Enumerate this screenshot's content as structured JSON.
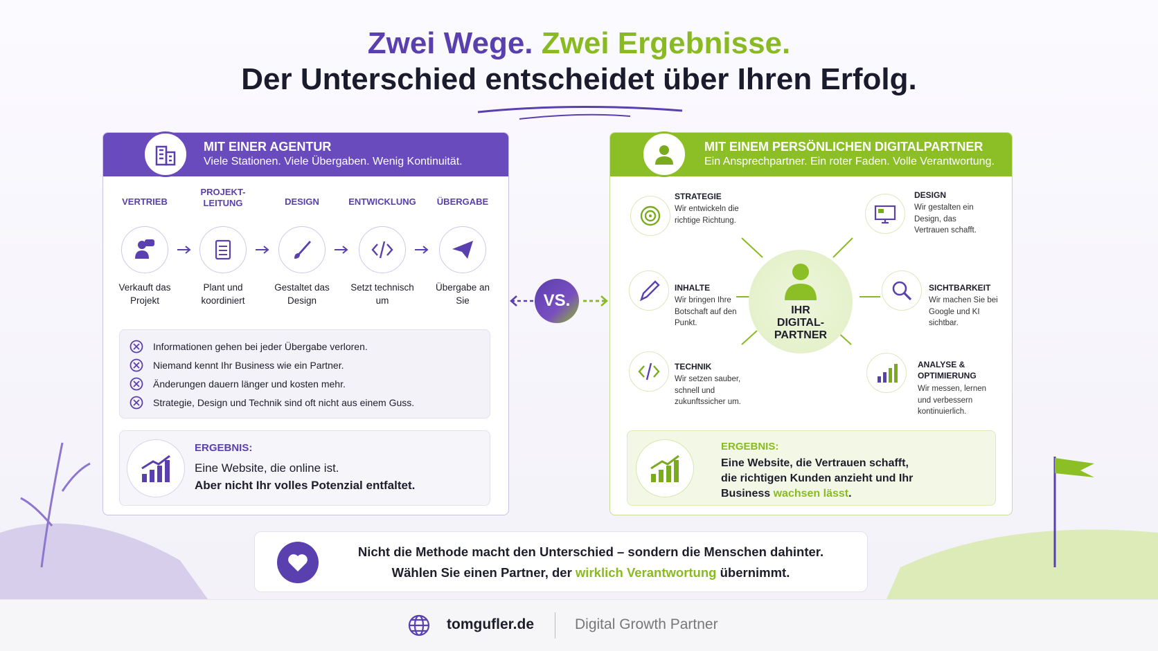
{
  "header": {
    "title_part1": "Zwei Wege.",
    "title_part2": "Zwei Ergebnisse.",
    "subtitle": "Der Unterschied entscheidet über Ihren Erfolg."
  },
  "agency": {
    "title": "MIT EINER AGENTUR",
    "subtitle": "Viele Stationen. Viele Übergaben. Wenig Kontinuität.",
    "steps": [
      {
        "label": "VERTRIEB",
        "desc": "Verkauft das Projekt"
      },
      {
        "label": "PROJEKT-LEITUNG",
        "desc": "Plant und koordiniert"
      },
      {
        "label": "DESIGN",
        "desc": "Gestaltet das Design"
      },
      {
        "label": "ENTWICKLUNG",
        "desc": "Setzt technisch um"
      },
      {
        "label": "ÜBERGABE",
        "desc": "Übergabe an Sie"
      }
    ],
    "issues": [
      "Informationen gehen bei jeder Übergabe verloren.",
      "Niemand kennt Ihr Business wie ein Partner.",
      "Änderungen dauern länger und kosten mehr.",
      "Strategie, Design und Technik sind oft nicht aus einem Guss."
    ],
    "result": {
      "label": "ERGEBNIS:",
      "line1": "Eine Website, die online ist.",
      "line2": "Aber nicht Ihr volles Potenzial entfaltet."
    }
  },
  "vs": "VS.",
  "partner": {
    "title": "MIT EINEM PERSÖNLICHEN DIGITALPARTNER",
    "subtitle": "Ein Ansprechpartner. Ein roter Faden. Volle Verantwortung.",
    "center": "IHR DIGITAL-PARTNER",
    "services": [
      {
        "title": "STRATEGIE",
        "desc": "Wir entwickeln die richtige Richtung."
      },
      {
        "title": "DESIGN",
        "desc": "Wir gestalten ein Design, das Vertrauen schafft."
      },
      {
        "title": "INHALTE",
        "desc": "Wir bringen Ihre Botschaft auf den Punkt."
      },
      {
        "title": "SICHTBARKEIT",
        "desc": "Wir machen Sie bei Google und KI sichtbar."
      },
      {
        "title": "TECHNIK",
        "desc": "Wir setzen sauber, schnell und zukunftssicher um."
      },
      {
        "title": "ANALYSE & OPTIMIERUNG",
        "desc": "Wir messen, lernen und verbessern kontinuierlich."
      }
    ],
    "result": {
      "label": "ERGEBNIS:",
      "text": "Eine Website, die Vertrauen schafft, die richtigen Kunden anzieht und Ihr Business",
      "highlight": "wachsen lässt",
      "end": "."
    }
  },
  "banner": {
    "line1": "Nicht die Methode macht den Unterschied – sondern die Menschen dahinter.",
    "line2_before": "Wählen Sie einen Partner, der",
    "line2_highlight": "wirklich Verantwortung",
    "line2_after": "übernimmt."
  },
  "footer": {
    "site": "tomgufler.de",
    "tagline": "Digital Growth Partner"
  }
}
